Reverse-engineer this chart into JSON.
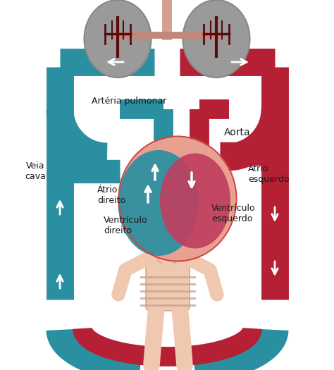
{
  "bg_color": "#ffffff",
  "teal_color": "#2a8fa0",
  "red_color": "#b52035",
  "lung_color": "#9a9a9a",
  "heart_left_color": "#c04060",
  "heart_bg_color": "#e8a090",
  "body_color": "#f0c8b0",
  "labels": {
    "arteria": "Artéria pulmonar",
    "veia": "Veia\ncava",
    "aorta": "Aorta",
    "atrio_esq": "Átrio\nesquerdo",
    "atrio_dir": "Átrio\ndireito",
    "ventriculo_dir": "Ventrículo\ndireito",
    "ventriculo_esq": "Ventrículo\nesquerdo"
  },
  "label_fontsize": 9,
  "label_color": "#1a1a1a"
}
